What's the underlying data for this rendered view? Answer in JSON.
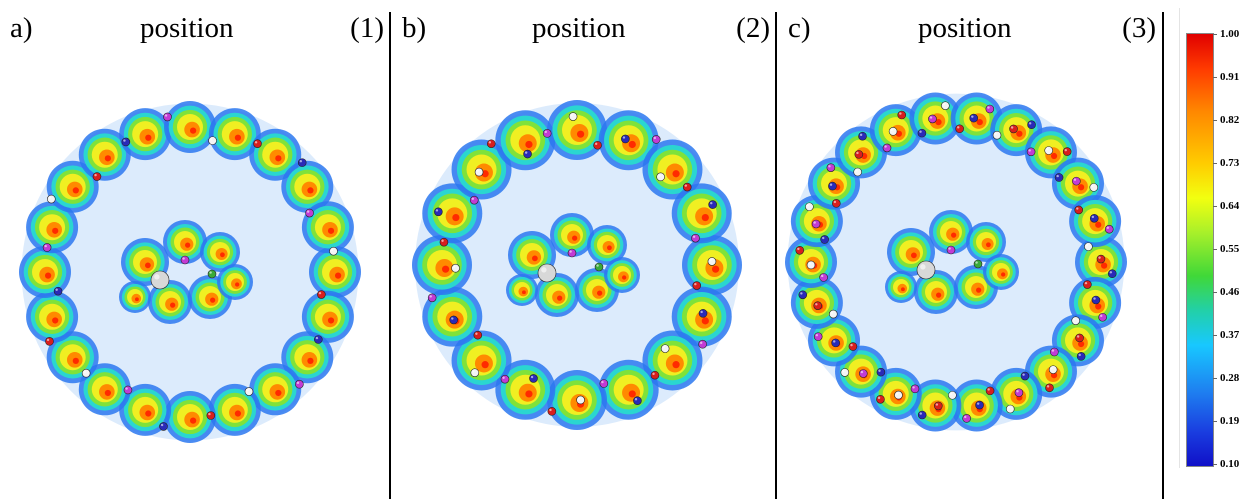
{
  "panels": [
    {
      "tag": "a)",
      "word": "position",
      "num": "(1)"
    },
    {
      "tag": "b)",
      "word": "position",
      "num": "(2)"
    },
    {
      "tag": "c)",
      "word": "position",
      "num": "(3)"
    }
  ],
  "colorbar": {
    "labels": [
      "1.00",
      "0.91",
      "0.82",
      "0.73",
      "0.64",
      "0.55",
      "0.46",
      "0.37",
      "0.28",
      "0.19",
      "0.10"
    ]
  }
}
